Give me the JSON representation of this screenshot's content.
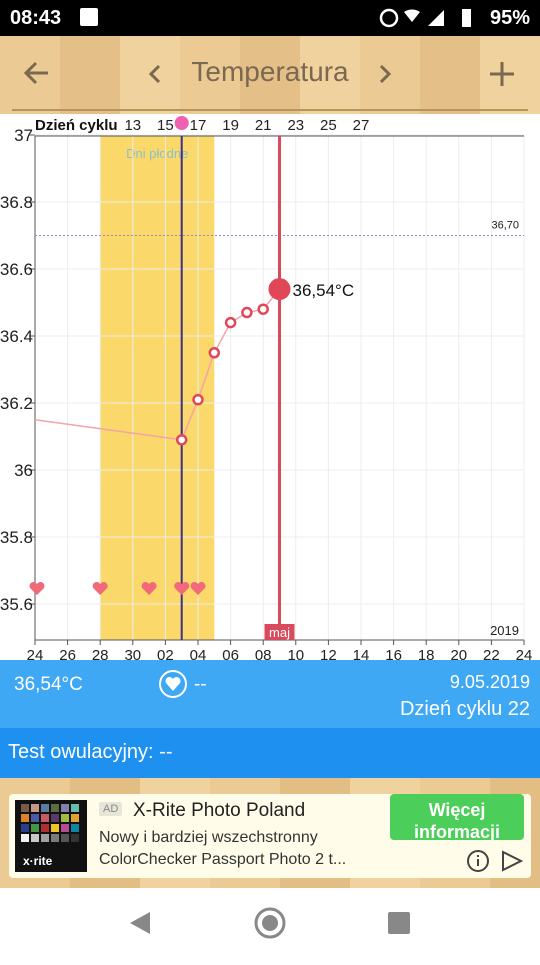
{
  "status_bar": {
    "time": "08:43",
    "battery": "95%"
  },
  "header": {
    "title": "Temperatura"
  },
  "chart_data": {
    "type": "line",
    "x": [
      0,
      9,
      10,
      11,
      12,
      13,
      14,
      15
    ],
    "values": [
      36.15,
      36.09,
      36.21,
      36.35,
      36.44,
      36.47,
      36.48,
      36.54
    ],
    "color": "#f4a3ab",
    "xlim": [
      0,
      30
    ],
    "xticks": [
      {
        "value": 0,
        "label": "24"
      },
      {
        "value": 2,
        "label": "26"
      },
      {
        "value": 4,
        "label": "28"
      },
      {
        "value": 6,
        "label": "30"
      },
      {
        "value": 8,
        "label": "02"
      },
      {
        "value": 10,
        "label": "04"
      },
      {
        "value": 12,
        "label": "06"
      },
      {
        "value": 14,
        "label": "08"
      },
      {
        "value": 16,
        "label": "10"
      },
      {
        "value": 18,
        "label": "12"
      },
      {
        "value": 20,
        "label": "14"
      },
      {
        "value": 22,
        "label": "16"
      },
      {
        "value": 24,
        "label": "18"
      },
      {
        "value": 26,
        "label": "20"
      },
      {
        "value": 28,
        "label": "22"
      },
      {
        "value": 30,
        "label": "24"
      }
    ],
    "top_axis_label": "Dzień cyklu",
    "top_ticks": [
      {
        "value": 6,
        "label": "13"
      },
      {
        "value": 8,
        "label": "15"
      },
      {
        "value": 10,
        "label": "17"
      },
      {
        "value": 12,
        "label": "19"
      },
      {
        "value": 14,
        "label": "21"
      },
      {
        "value": 16,
        "label": "23"
      },
      {
        "value": 18,
        "label": "25"
      },
      {
        "value": 20,
        "label": "27"
      }
    ],
    "ylim": [
      35.5,
      37
    ],
    "yticks": [
      37,
      36.8,
      36.6,
      36.4,
      36.2,
      36,
      35.8,
      35.6
    ],
    "grid": true,
    "fertile_window": {
      "label": "Dni płodne",
      "x": [
        4,
        11
      ]
    },
    "ovulation_x": 9,
    "today_x": 15,
    "today_label": "maj",
    "reference_line": {
      "value": 36.7,
      "label": "36,70"
    },
    "year_label": "2019",
    "hearts_x": [
      0,
      4,
      7,
      9,
      10
    ],
    "current_label": "36,54°C"
  },
  "info": {
    "temperature": "36,54°C",
    "test_value": "--",
    "date": "9.05.2019",
    "cycle_day": "Dzień cyklu 22",
    "ovulation_test": "Test owulacyjny: --"
  },
  "ad": {
    "logo": "x·rite",
    "badge": "AD",
    "title": "X-Rite Photo Poland",
    "line1": "Nowy i bardziej wszechstronny",
    "line2": "ColorChecker Passport Photo 2 t...",
    "button": "Więcej informacji"
  }
}
